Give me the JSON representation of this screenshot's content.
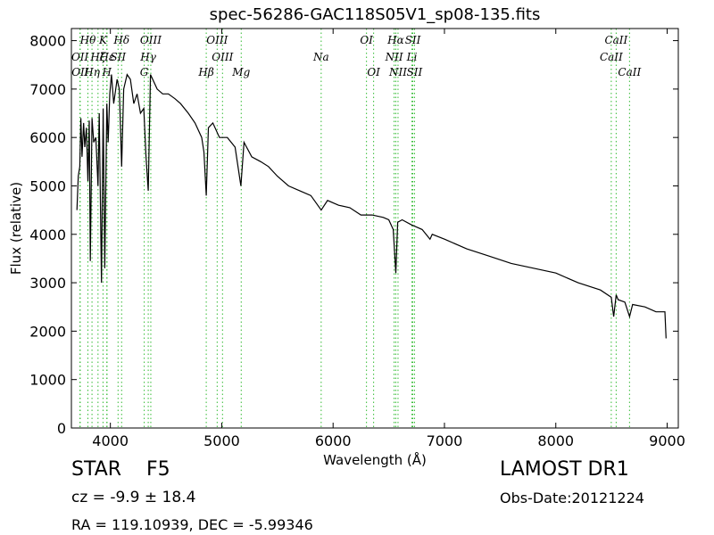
{
  "chart_data": {
    "type": "line",
    "title": "spec-56286-GAC118S05V1_sp08-135.fits",
    "xlabel": "Wavelength (Å)",
    "ylabel": "Flux (relative)",
    "xlim": [
      3650,
      9100
    ],
    "ylim": [
      0,
      8250
    ],
    "xticks": [
      4000,
      5000,
      6000,
      7000,
      8000,
      9000
    ],
    "yticks": [
      0,
      1000,
      2000,
      3000,
      4000,
      5000,
      6000,
      7000,
      8000
    ],
    "grid": false,
    "line_color": "#000000",
    "marker_color": "#33bb33",
    "series": [
      {
        "x": [
          3700,
          3712,
          3725,
          3735,
          3745,
          3760,
          3770,
          3785,
          3798,
          3810,
          3820,
          3835,
          3850,
          3870,
          3889,
          3900,
          3920,
          3935,
          3950,
          3968,
          3980,
          3995,
          4010,
          4030,
          4060,
          4080,
          4101,
          4120,
          4150,
          4180,
          4210,
          4240,
          4270,
          4300,
          4320,
          4340,
          4360,
          4380,
          4420,
          4470,
          4520,
          4580,
          4630,
          4700,
          4760,
          4820,
          4840,
          4861,
          4880,
          4920,
          4980,
          5050,
          5120,
          5172,
          5200,
          5270,
          5350,
          5420,
          5500,
          5600,
          5700,
          5800,
          5893,
          5950,
          6050,
          6150,
          6250,
          6350,
          6450,
          6500,
          6540,
          6563,
          6580,
          6620,
          6700,
          6800,
          6870,
          6890,
          7000,
          7200,
          7400,
          7600,
          7800,
          8000,
          8200,
          8400,
          8498,
          8520,
          8542,
          8560,
          8620,
          8662,
          8690,
          8800,
          8900,
          8980,
          8990
        ],
        "y": [
          4500,
          5200,
          5400,
          6400,
          5600,
          6300,
          5800,
          6200,
          5100,
          6350,
          3450,
          6400,
          5900,
          6000,
          5000,
          6500,
          3000,
          6600,
          3300,
          6700,
          5900,
          6900,
          7300,
          6700,
          7200,
          7000,
          5400,
          7000,
          7300,
          7200,
          6700,
          6900,
          6500,
          6600,
          5600,
          4900,
          7300,
          7200,
          7000,
          6900,
          6900,
          6800,
          6700,
          6500,
          6300,
          6000,
          5700,
          4800,
          6200,
          6300,
          6000,
          6000,
          5800,
          5000,
          5900,
          5600,
          5500,
          5400,
          5200,
          5000,
          4900,
          4800,
          4500,
          4700,
          4600,
          4550,
          4400,
          4400,
          4350,
          4300,
          4100,
          3200,
          4250,
          4300,
          4200,
          4100,
          3900,
          4000,
          3900,
          3700,
          3550,
          3400,
          3300,
          3200,
          3000,
          2850,
          2700,
          2300,
          2750,
          2650,
          2600,
          2300,
          2550,
          2500,
          2400,
          2400,
          1850
        ]
      }
    ],
    "spectral_lines": [
      {
        "label": "OII",
        "wl": 3727,
        "row": 2
      },
      {
        "label": "Hθ",
        "wl": 3798,
        "row": 1
      },
      {
        "label": "OII",
        "wl": 3729,
        "row": 3
      },
      {
        "label": "Hη",
        "wl": 3835,
        "row": 3
      },
      {
        "label": "Hζ",
        "wl": 3889,
        "row": 2
      },
      {
        "label": "K",
        "wl": 3934,
        "row": 1
      },
      {
        "label": "SII",
        "wl": 4069,
        "row": 2
      },
      {
        "label": "H",
        "wl": 3968,
        "row": 3
      },
      {
        "label": "Hε",
        "wl": 3970,
        "row": 2
      },
      {
        "label": "Hδ",
        "wl": 4101,
        "row": 1
      },
      {
        "label": "OIII",
        "wl": 4363,
        "row": 1
      },
      {
        "label": "Hγ",
        "wl": 4340,
        "row": 2
      },
      {
        "label": "G",
        "wl": 4304,
        "row": 3
      },
      {
        "label": "OIII",
        "wl": 4959,
        "row": 1
      },
      {
        "label": "Hβ",
        "wl": 4861,
        "row": 3
      },
      {
        "label": "OIII",
        "wl": 5007,
        "row": 2
      },
      {
        "label": "Mg",
        "wl": 5175,
        "row": 3
      },
      {
        "label": "Na",
        "wl": 5893,
        "row": 2
      },
      {
        "label": "OI",
        "wl": 6300,
        "row": 1
      },
      {
        "label": "OI",
        "wl": 6364,
        "row": 3
      },
      {
        "label": "Hα",
        "wl": 6563,
        "row": 1
      },
      {
        "label": "NII",
        "wl": 6548,
        "row": 2
      },
      {
        "label": "NII",
        "wl": 6583,
        "row": 3
      },
      {
        "label": "SII",
        "wl": 6716,
        "row": 1
      },
      {
        "label": "Li",
        "wl": 6708,
        "row": 2
      },
      {
        "label": "SII",
        "wl": 6731,
        "row": 3
      },
      {
        "label": "CaII",
        "wl": 8542,
        "row": 1
      },
      {
        "label": "CaII",
        "wl": 8498,
        "row": 2
      },
      {
        "label": "CaII",
        "wl": 8662,
        "row": 3
      }
    ]
  },
  "info": {
    "class_label": "STAR",
    "subclass_label": "F5",
    "cz_text": "cz = -9.9 ± 18.4",
    "radec_text": "RA = 119.10939, DEC = -5.99346",
    "survey": "LAMOST DR1",
    "obs_date": "Obs-Date:20121224"
  }
}
